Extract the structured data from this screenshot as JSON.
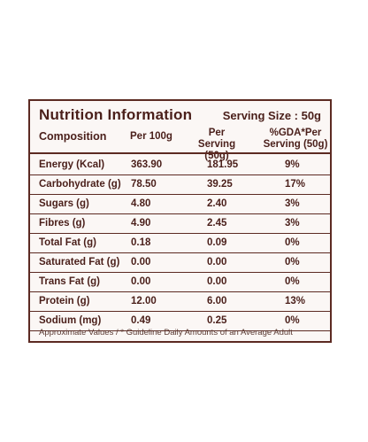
{
  "label": {
    "title": "Nutrition Information",
    "serving_size": "Serving Size : 50g",
    "headers": {
      "composition": "Composition",
      "per_100g": "Per 100g",
      "per_serving_line1": "Per Serving",
      "per_serving_line2": "(50g)",
      "gda_line1": "%GDA*Per",
      "gda_line2": "Serving (50g)"
    },
    "rows": [
      {
        "name": "Energy (Kcal)",
        "per_100g": "363.90",
        "per_serving": "181.95",
        "gda": "9%"
      },
      {
        "name": "Carbohydrate (g)",
        "per_100g": "78.50",
        "per_serving": "39.25",
        "gda": "17%"
      },
      {
        "name": "Sugars (g)",
        "per_100g": "4.80",
        "per_serving": "2.40",
        "gda": "3%"
      },
      {
        "name": "Fibres (g)",
        "per_100g": "4.90",
        "per_serving": "2.45",
        "gda": "3%"
      },
      {
        "name": "Total Fat (g)",
        "per_100g": "0.18",
        "per_serving": "0.09",
        "gda": "0%"
      },
      {
        "name": "Saturated Fat (g)",
        "per_100g": "0.00",
        "per_serving": "0.00",
        "gda": "0%"
      },
      {
        "name": "Trans Fat (g)",
        "per_100g": "0.00",
        "per_serving": "0.00",
        "gda": "0%"
      },
      {
        "name": "Protein (g)",
        "per_100g": "12.00",
        "per_serving": "6.00",
        "gda": "13%"
      },
      {
        "name": "Sodium (mg)",
        "per_100g": "0.49",
        "per_serving": "0.25",
        "gda": "0%"
      }
    ],
    "footer": "Approximate Values / * Guideline Daily Amounts of an Average Adult"
  }
}
